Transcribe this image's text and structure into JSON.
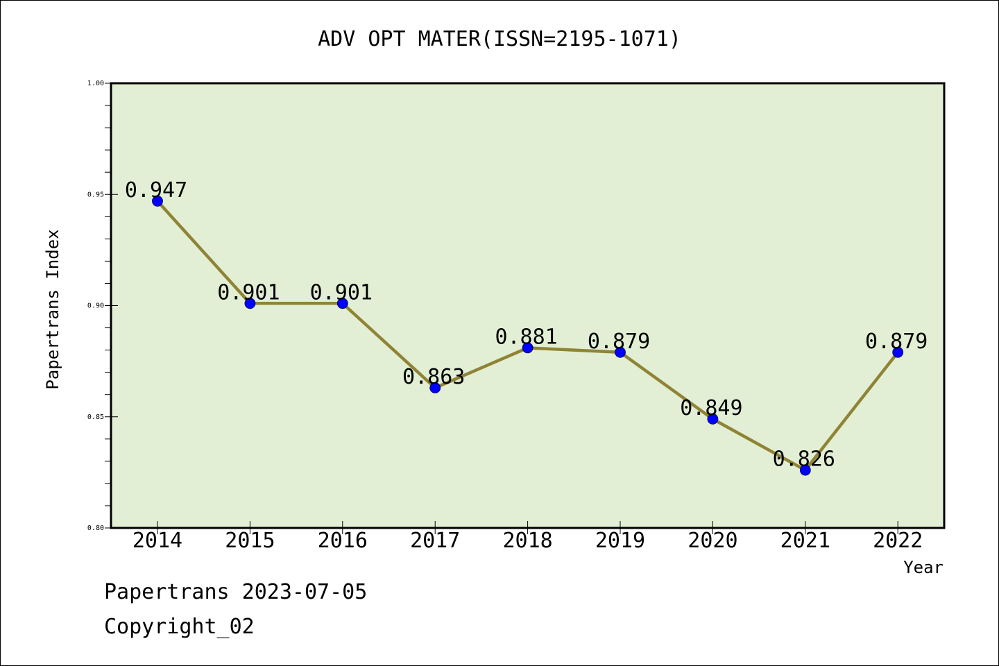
{
  "chart_data": {
    "type": "line",
    "title": "ADV OPT MATER(ISSN=2195-1071)",
    "xlabel": "Year",
    "ylabel": "Papertrans Index",
    "x": [
      "2014",
      "2015",
      "2016",
      "2017",
      "2018",
      "2019",
      "2020",
      "2021",
      "2022"
    ],
    "values": [
      0.947,
      0.901,
      0.901,
      0.863,
      0.881,
      0.879,
      0.849,
      0.826,
      0.879
    ],
    "data_labels": [
      "0.947",
      "0.901",
      "0.901",
      "0.863",
      "0.881",
      "0.879",
      "0.849",
      "0.826",
      "0.879"
    ],
    "ylim": [
      0.8,
      1.0
    ],
    "yticks": [
      0.8,
      0.85,
      0.9,
      0.95,
      1.0
    ],
    "ytick_labels": [
      "0.80",
      "0.85",
      "0.90",
      "0.95",
      "1.00"
    ],
    "grid": false,
    "legend": "none",
    "colors": {
      "plot_background": "#e2efd5",
      "line": "#8f8435",
      "marker": "#0000ff"
    }
  },
  "footer": {
    "source": "Papertrans 2023-07-05",
    "copyright": "Copyright_02"
  }
}
